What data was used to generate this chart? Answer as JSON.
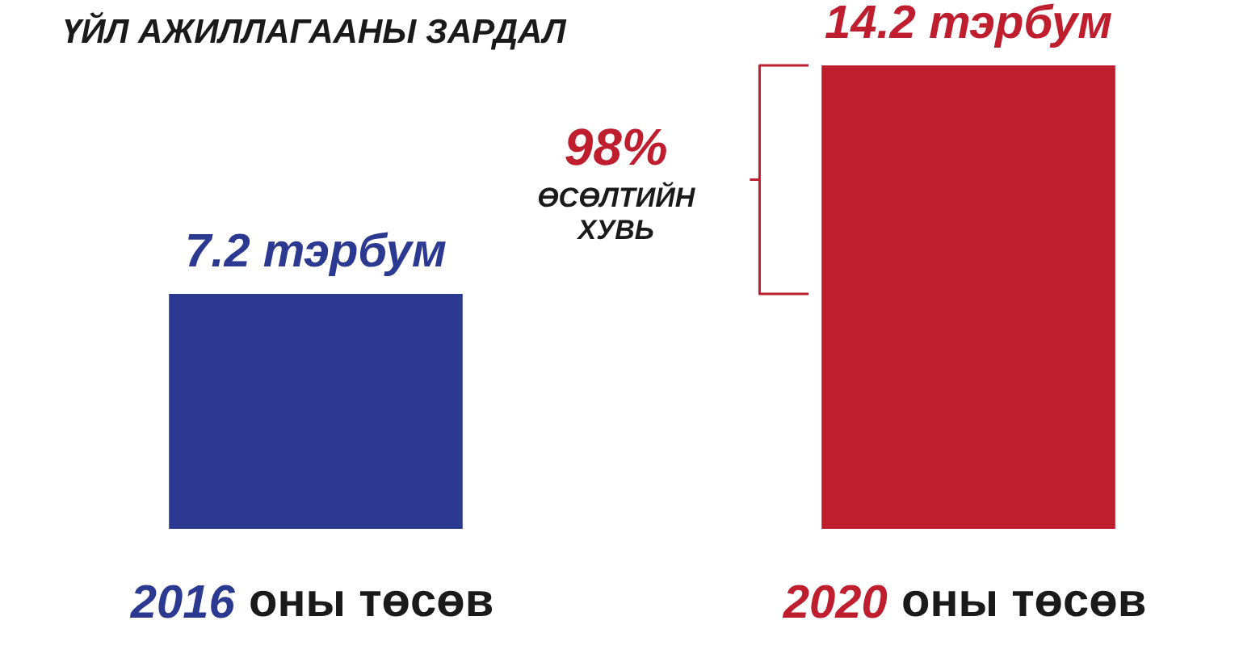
{
  "chart_data": {
    "type": "bar",
    "title": "ҮЙЛ АЖИЛЛАГААНЫ ЗАРДАЛ",
    "categories": [
      "2016 оны төсөв",
      "2020 оны төсөв"
    ],
    "values": [
      7.2,
      14.2
    ],
    "colors": [
      "#2b3990",
      "#be1e2d"
    ],
    "value_labels": [
      "7.2 тэрбум",
      "14.2 тэрбум"
    ],
    "annotations": [
      "98%",
      "ӨСӨЛТИЙН ХУВЬ"
    ]
  }
}
